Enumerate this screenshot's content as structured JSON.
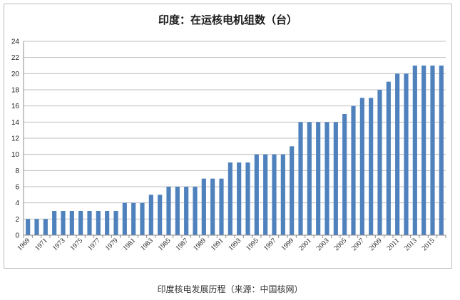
{
  "caption": "印度核电发展历程（来源：中国核网）",
  "chart_data": {
    "type": "bar",
    "title": "印度：在运核电机组数（台）",
    "xlabel": "",
    "ylabel": "",
    "ylim": [
      0,
      24
    ],
    "yticks": [
      0,
      2,
      4,
      6,
      8,
      10,
      12,
      14,
      16,
      18,
      20,
      22,
      24
    ],
    "grid": true,
    "bar_color": "#4f81bd",
    "categories": [
      "1969",
      "1970",
      "1971",
      "1972",
      "1973",
      "1974",
      "1975",
      "1976",
      "1977",
      "1978",
      "1979",
      "1980",
      "1981",
      "1982",
      "1983",
      "1984",
      "1985",
      "1986",
      "1987",
      "1988",
      "1989",
      "1990",
      "1991",
      "1992",
      "1993",
      "1994",
      "1995",
      "1996",
      "1997",
      "1998",
      "1999",
      "2000",
      "2001",
      "2002",
      "2003",
      "2004",
      "2005",
      "2006",
      "2007",
      "2008",
      "2009",
      "2010",
      "2011",
      "2012",
      "2013",
      "2014",
      "2015",
      "2016"
    ],
    "tick_labels": [
      "1969",
      "1971",
      "1973",
      "1975",
      "1977",
      "1979",
      "1981",
      "1983",
      "1985",
      "1987",
      "1989",
      "1991",
      "1993",
      "1995",
      "1997",
      "1999",
      "2001",
      "2003",
      "2005",
      "2007",
      "2009",
      "2011",
      "2013",
      "2015"
    ],
    "values": [
      2,
      2,
      2,
      3,
      3,
      3,
      3,
      3,
      3,
      3,
      3,
      4,
      4,
      4,
      5,
      5,
      6,
      6,
      6,
      6,
      7,
      7,
      7,
      9,
      9,
      9,
      10,
      10,
      10,
      10,
      11,
      14,
      14,
      14,
      14,
      14,
      15,
      16,
      17,
      17,
      18,
      19,
      20,
      20,
      21,
      21,
      21,
      21
    ]
  }
}
